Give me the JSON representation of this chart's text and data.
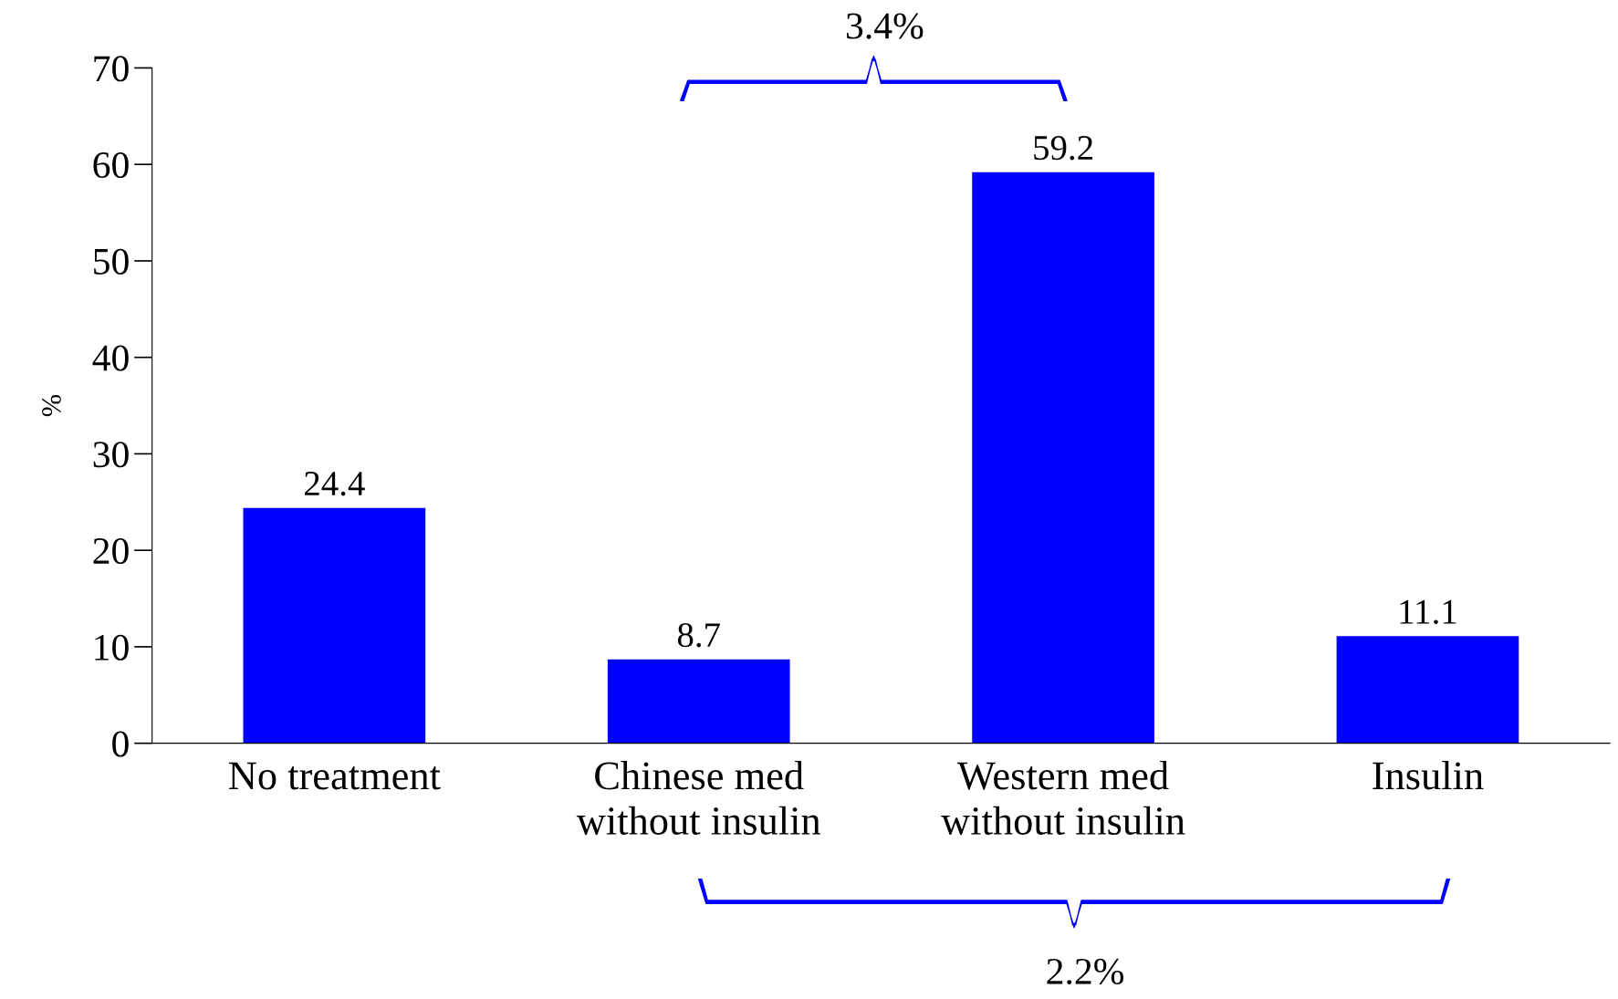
{
  "chart_data": {
    "type": "bar",
    "ylabel": "%",
    "categories": [
      "No treatment",
      "Chinese med\nwithout insulin",
      "Western med\nwithout insulin",
      "Insulin"
    ],
    "values": [
      24.4,
      8.7,
      59.2,
      11.1
    ],
    "color": "#0000ff",
    "ylim": [
      0,
      70
    ],
    "yticks": [
      0,
      10,
      20,
      30,
      40,
      50,
      60,
      70
    ],
    "grid": false,
    "data_labels": true,
    "annotations": [
      "3.4%",
      "2.2%"
    ]
  }
}
